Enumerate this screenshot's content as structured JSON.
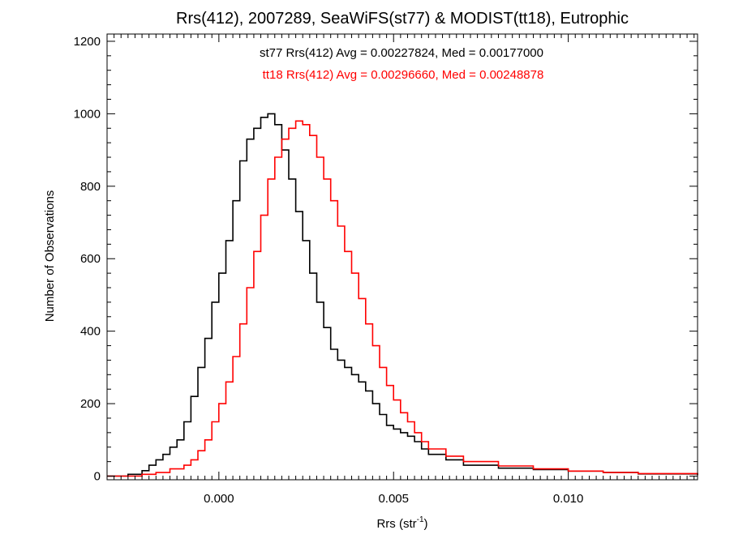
{
  "chart_data": {
    "type": "line",
    "title": "Rrs(412), 2007289, SeaWiFS(st77) & MODIST(tt18), Eutrophic",
    "xlabel_main": "Rrs (str",
    "xlabel_sup": "-1",
    "xlabel_close": ")",
    "ylabel": "Number of Observations",
    "xlim": [
      -0.0032,
      0.0137
    ],
    "ylim": [
      -10,
      1220
    ],
    "xticks": [
      0.0,
      0.005,
      0.01
    ],
    "xtick_labels": [
      "0.000",
      "0.005",
      "0.010"
    ],
    "yticks": [
      0,
      200,
      400,
      600,
      800,
      1000,
      1200
    ],
    "ytick_labels": [
      "0",
      "200",
      "400",
      "600",
      "800",
      "1000",
      "1200"
    ],
    "grid": false,
    "series": [
      {
        "name": "st77",
        "legend_text": "st77 Rrs(412) Avg = 0.00227824, Med = 0.00177000",
        "color": "#000000",
        "style": "step",
        "x": [
          -0.0032,
          -0.0026,
          -0.0022,
          -0.002,
          -0.0018,
          -0.0016,
          -0.0014,
          -0.0012,
          -0.001,
          -0.0008,
          -0.0006,
          -0.0004,
          -0.0002,
          0.0,
          0.0002,
          0.0004,
          0.0006,
          0.0008,
          0.001,
          0.0012,
          0.0014,
          0.0016,
          0.0018,
          0.002,
          0.0022,
          0.0024,
          0.0026,
          0.0028,
          0.003,
          0.0032,
          0.0034,
          0.0036,
          0.0038,
          0.004,
          0.0042,
          0.0044,
          0.0046,
          0.0048,
          0.005,
          0.0052,
          0.0054,
          0.0056,
          0.0058,
          0.006,
          0.0065,
          0.007,
          0.008,
          0.009,
          0.01,
          0.011,
          0.012,
          0.0137
        ],
        "y": [
          0,
          5,
          15,
          30,
          45,
          60,
          80,
          100,
          150,
          220,
          300,
          380,
          480,
          560,
          650,
          760,
          870,
          930,
          960,
          990,
          1000,
          970,
          900,
          820,
          730,
          650,
          560,
          480,
          410,
          350,
          320,
          300,
          280,
          260,
          235,
          200,
          170,
          140,
          130,
          120,
          110,
          95,
          75,
          60,
          45,
          30,
          22,
          18,
          14,
          10,
          6,
          3
        ]
      },
      {
        "name": "tt18",
        "legend_text": "tt18 Rrs(412) Avg = 0.00296660, Med = 0.00248878",
        "color": "#ff0000",
        "style": "step",
        "x": [
          -0.0032,
          -0.0022,
          -0.0018,
          -0.0014,
          -0.001,
          -0.0008,
          -0.0006,
          -0.0004,
          -0.0002,
          0.0,
          0.0002,
          0.0004,
          0.0006,
          0.0008,
          0.001,
          0.0012,
          0.0014,
          0.0016,
          0.0018,
          0.002,
          0.0022,
          0.0024,
          0.0026,
          0.0028,
          0.003,
          0.0032,
          0.0034,
          0.0036,
          0.0038,
          0.004,
          0.0042,
          0.0044,
          0.0046,
          0.0048,
          0.005,
          0.0052,
          0.0054,
          0.0056,
          0.0058,
          0.006,
          0.0065,
          0.007,
          0.008,
          0.009,
          0.01,
          0.011,
          0.012,
          0.0137
        ],
        "y": [
          0,
          5,
          10,
          20,
          30,
          45,
          70,
          100,
          150,
          200,
          260,
          330,
          420,
          520,
          620,
          720,
          820,
          880,
          930,
          960,
          980,
          970,
          940,
          880,
          820,
          760,
          690,
          620,
          560,
          490,
          420,
          360,
          300,
          250,
          210,
          175,
          150,
          120,
          95,
          75,
          55,
          40,
          28,
          20,
          14,
          10,
          7,
          4
        ]
      }
    ]
  }
}
